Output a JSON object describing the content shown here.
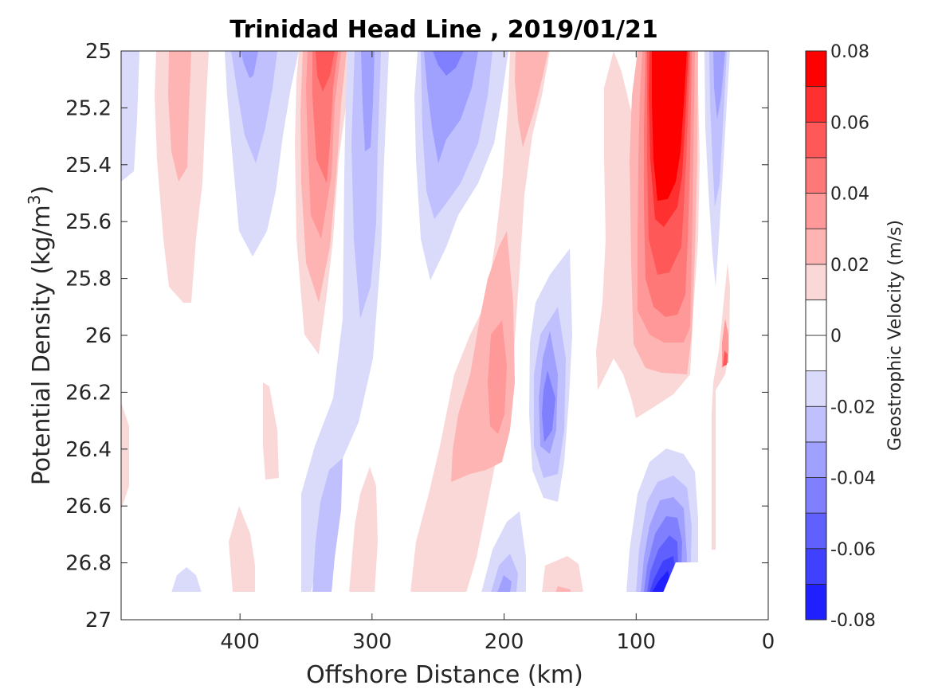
{
  "chart_data": {
    "type": "contour",
    "title": "Trinidad Head Line , 2019/01/21",
    "xlabel": "Offshore Distance (km)",
    "ylabel_main": "Potential Density (kg/m",
    "ylabel_sup": "3",
    "ylabel_end": ")",
    "xlim": [
      490,
      0
    ],
    "x_reversed": true,
    "x_ticks": [
      400,
      300,
      200,
      100,
      0
    ],
    "x_tick_labels": [
      "400",
      "300",
      "200",
      "100",
      "0"
    ],
    "ylim": [
      25,
      27
    ],
    "y_reversed": true,
    "y_ticks": [
      25,
      25.2,
      25.4,
      25.6,
      25.8,
      26,
      26.2,
      26.4,
      26.6,
      26.8,
      27
    ],
    "y_tick_labels": [
      "25",
      "25.2",
      "25.4",
      "25.6",
      "25.8",
      "26",
      "26.2",
      "26.4",
      "26.6",
      "26.8",
      "27"
    ],
    "data_bottom_density": 26.9,
    "colorbar": {
      "label": "Geostrophic Velocity (m/s)",
      "range": [
        -0.08,
        0.08
      ],
      "levels": [
        -0.08,
        -0.07,
        -0.06,
        -0.05,
        -0.04,
        -0.03,
        -0.02,
        -0.01,
        0,
        0.01,
        0.02,
        0.03,
        0.04,
        0.05,
        0.06,
        0.07,
        0.08
      ],
      "tick_values": [
        0.08,
        0.06,
        0.04,
        0.02,
        0,
        -0.02,
        -0.04,
        -0.06,
        -0.08
      ],
      "tick_labels": [
        "0.08",
        "0.06",
        "0.04",
        "0.02",
        "0",
        "-0.02",
        "-0.04",
        "-0.06",
        "-0.08"
      ],
      "colors": [
        "#0000ff",
        "#2020ff",
        "#4040ff",
        "#6060ff",
        "#8080ff",
        "#a0a0ff",
        "#c0c0ff",
        "#dadafb",
        "#ffffff",
        "#ffffff",
        "#fbd8d8",
        "#ffb4b4",
        "#ff9898",
        "#ff7878",
        "#ff5858",
        "#ff3030",
        "#ff0000"
      ]
    },
    "features": [
      {
        "name": "nearshore-core",
        "x": 72,
        "y_top": 25.0,
        "y_bottom": 26.15,
        "peak": 0.08
      },
      {
        "name": "positive-jet-340",
        "x": 340,
        "y_top": 25.0,
        "y_bottom": 26.05,
        "peak": 0.05
      },
      {
        "name": "positive-band-205",
        "x": 205,
        "y_top": 25.0,
        "y_bottom": 26.9,
        "peak": 0.04
      },
      {
        "name": "positive-band-445",
        "x": 445,
        "y_top": 25.0,
        "y_bottom": 25.9,
        "peak": 0.03
      },
      {
        "name": "negative-band-305",
        "x": 305,
        "y_top": 25.0,
        "y_bottom": 26.9,
        "peak": -0.03
      },
      {
        "name": "negative-band-395",
        "x": 395,
        "y_top": 25.0,
        "y_bottom": 25.75,
        "peak": -0.03
      },
      {
        "name": "negative-band-245",
        "x": 245,
        "y_top": 25.0,
        "y_bottom": 25.8,
        "peak": -0.04
      },
      {
        "name": "negative-lens-170",
        "x": 170,
        "y_top": 25.7,
        "y_bottom": 26.6,
        "peak": -0.04
      },
      {
        "name": "deep-negative-core",
        "x": 75,
        "y_top": 26.45,
        "y_bottom": 26.9,
        "peak": -0.07
      },
      {
        "name": "coastal-negative-strip",
        "x": 40,
        "y_top": 25.0,
        "y_bottom": 25.8,
        "peak": -0.03
      },
      {
        "name": "deep-negative-385",
        "x": 385,
        "y_top": 26.5,
        "y_bottom": 26.9,
        "peak": -0.03
      }
    ]
  }
}
